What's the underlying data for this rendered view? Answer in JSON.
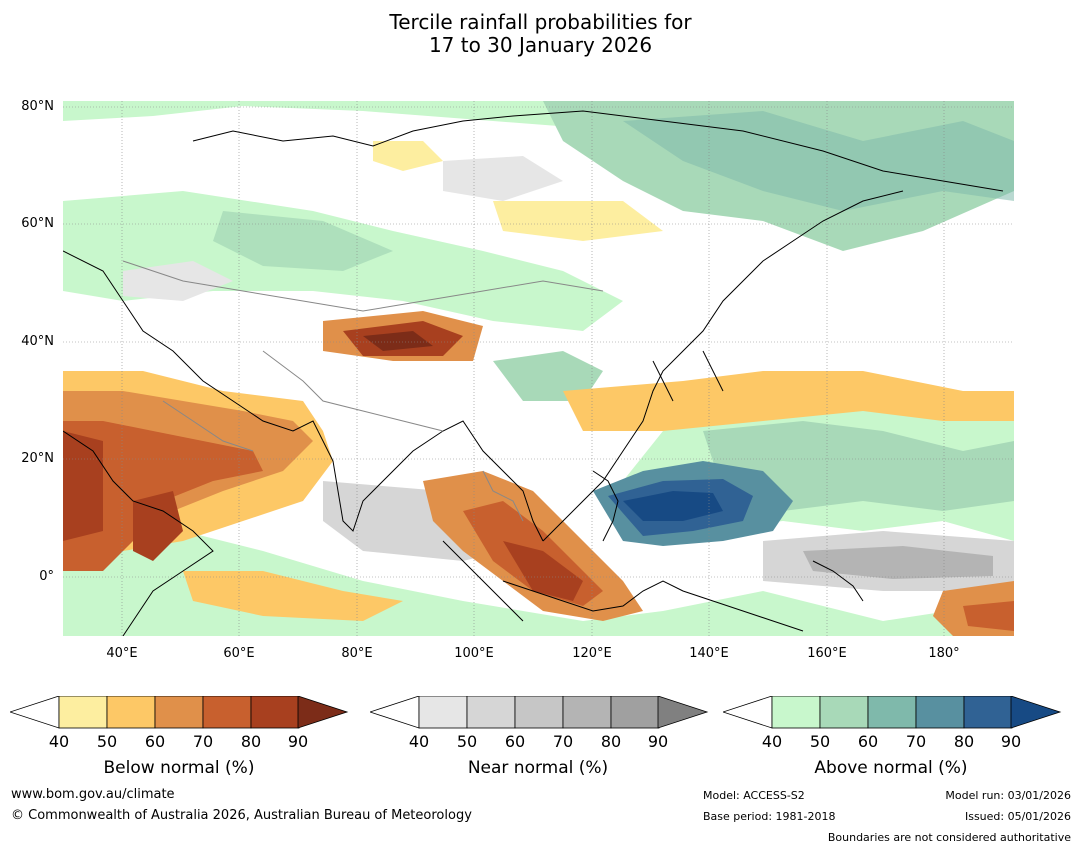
{
  "title": {
    "line1": "Tercile rainfall probabilities for",
    "line2": "17 to 30 January 2026"
  },
  "axes": {
    "lat_labels": [
      "80°N",
      "60°N",
      "40°N",
      "20°N",
      "0°"
    ],
    "lon_labels": [
      "40°E",
      "60°E",
      "80°E",
      "100°E",
      "120°E",
      "140°E",
      "160°E",
      "180°"
    ]
  },
  "colorbars": [
    {
      "id": "below",
      "title": "Below normal (%)",
      "ticks": [
        "40",
        "50",
        "60",
        "70",
        "80",
        "90"
      ],
      "colors": [
        "#fdeea0",
        "#fdc866",
        "#e0904a",
        "#c8602e",
        "#a8401f",
        "#7c2c18"
      ]
    },
    {
      "id": "near",
      "title": "Near normal (%)",
      "ticks": [
        "40",
        "50",
        "60",
        "70",
        "80",
        "90"
      ],
      "colors": [
        "#e6e6e6",
        "#d6d6d6",
        "#c6c6c6",
        "#b4b4b4",
        "#a0a0a0",
        "#808080"
      ]
    },
    {
      "id": "above",
      "title": "Above normal (%)",
      "ticks": [
        "40",
        "50",
        "60",
        "70",
        "80",
        "90"
      ],
      "colors": [
        "#c8f7cc",
        "#a8d9b8",
        "#7fb9ab",
        "#5890a0",
        "#306294",
        "#174a84"
      ]
    }
  ],
  "footer": {
    "website": "www.bom.gov.au/climate",
    "copyright": "© Commonwealth of Australia 2026, Australian Bureau of Meteorology",
    "model": "Model: ACCESS-S2",
    "base_period": "Base period: 1981-2018",
    "model_run": "Model run: 03/01/2026",
    "issued": "Issued: 05/01/2026",
    "boundaries_note": "Boundaries are not considered authoritative"
  }
}
